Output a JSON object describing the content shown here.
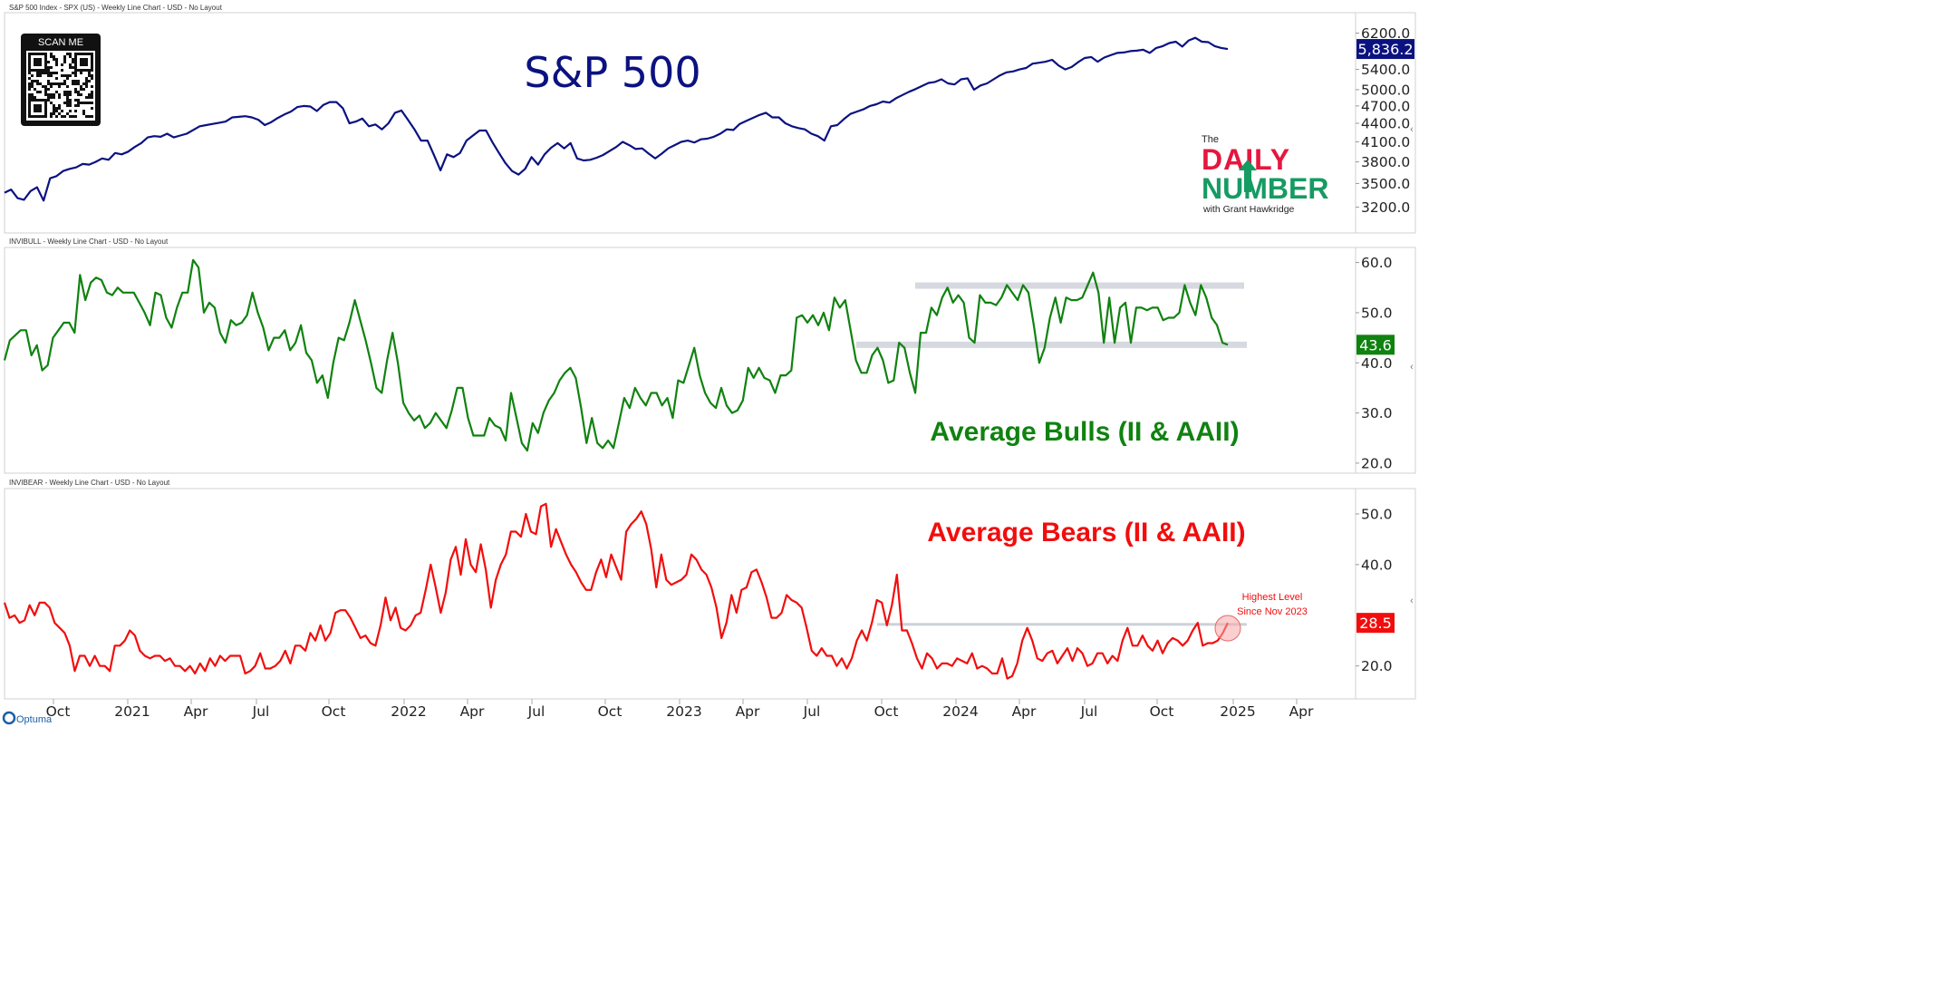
{
  "colors": {
    "spx": "#0b1280",
    "bull": "#108210",
    "bear": "#f20d0d",
    "spx_label_bg": "#0b1280",
    "bull_label_bg": "#108210",
    "bear_label_bg": "#f20d0d",
    "logo_red": "#e5173f",
    "logo_green": "#169b62",
    "band": "#c8ccd4"
  },
  "branding": {
    "qr_label": "SCAN ME",
    "logo_the": "The",
    "logo_daily": "DAILY",
    "logo_number": "NUMBER",
    "logo_sub": "with Grant Hawkridge",
    "optuma": "Optuma"
  },
  "chart_data": [
    {
      "type": "line",
      "panel_caption": "S&P 500 Index - SPX (US) - Weekly Line Chart - USD - No Layout",
      "title": "S&P 500",
      "ylim": [
        2900,
        6700
      ],
      "yticks": [
        "3200.0",
        "3500.0",
        "3800.0",
        "4100.0",
        "4400.0",
        "4700.0",
        "5000.0",
        "5400.0",
        "6200.0"
      ],
      "last_label": "5,836.2",
      "grid": false,
      "series": [
        {
          "values": [
            3380,
            3420,
            3310,
            3290,
            3400,
            3450,
            3280,
            3570,
            3600,
            3670,
            3700,
            3720,
            3770,
            3760,
            3800,
            3850,
            3830,
            3930,
            3910,
            3950,
            4020,
            4080,
            4170,
            4190,
            4180,
            4230,
            4170,
            4200,
            4230,
            4290,
            4350,
            4370,
            4390,
            4410,
            4430,
            4500,
            4510,
            4520,
            4500,
            4460,
            4370,
            4420,
            4490,
            4550,
            4600,
            4680,
            4700,
            4690,
            4610,
            4720,
            4770,
            4770,
            4660,
            4400,
            4430,
            4480,
            4350,
            4380,
            4300,
            4400,
            4580,
            4620,
            4460,
            4300,
            4120,
            4120,
            3900,
            3680,
            3910,
            3870,
            3930,
            4120,
            4200,
            4280,
            4280,
            4090,
            3930,
            3780,
            3670,
            3620,
            3700,
            3870,
            3760,
            3910,
            4010,
            4080,
            4000,
            4080,
            3850,
            3820,
            3830,
            3860,
            3900,
            3960,
            4020,
            4100,
            4050,
            3990,
            4000,
            3920,
            3850,
            3920,
            4000,
            4050,
            4100,
            4120,
            4090,
            4140,
            4150,
            4180,
            4230,
            4300,
            4290,
            4390,
            4440,
            4490,
            4540,
            4580,
            4500,
            4500,
            4400,
            4350,
            4320,
            4300,
            4230,
            4190,
            4120,
            4350,
            4370,
            4470,
            4560,
            4600,
            4640,
            4700,
            4730,
            4780,
            4760,
            4840,
            4900,
            4960,
            5010,
            5070,
            5130,
            5150,
            5200,
            5120,
            5100,
            5200,
            5220,
            5000,
            5080,
            5120,
            5200,
            5280,
            5340,
            5360,
            5400,
            5430,
            5520,
            5540,
            5560,
            5600,
            5480,
            5400,
            5450,
            5550,
            5640,
            5660,
            5560,
            5650,
            5700,
            5750,
            5760,
            5790,
            5800,
            5820,
            5750,
            5860,
            5900,
            5970,
            6000,
            5890,
            6030,
            6090,
            6000,
            5990,
            5900,
            5860,
            5836
          ]
        }
      ]
    },
    {
      "type": "line",
      "panel_caption": "INVIBULL - Weekly Line Chart - USD - No Layout",
      "title": "Average Bulls (II & AAII)",
      "ylim": [
        18,
        63
      ],
      "yticks": [
        "20.0",
        "30.0",
        "40.0",
        "50.0",
        "60.0"
      ],
      "last_label": "43.6",
      "grid": false,
      "bands": [
        55.4,
        43.6
      ],
      "series": [
        {
          "values": [
            40.5,
            44.5,
            45.5,
            46.5,
            46.5,
            41.5,
            43.5,
            38.5,
            39.5,
            45,
            46.5,
            48,
            48,
            46,
            57.5,
            52.5,
            56,
            57,
            56.5,
            54,
            53.5,
            55,
            54,
            54,
            54,
            52,
            50,
            47.5,
            54,
            53.5,
            49,
            47,
            51,
            54,
            54,
            60.5,
            59,
            50,
            52,
            51,
            46,
            44,
            48.5,
            47.5,
            48,
            49.5,
            54,
            50,
            47,
            42.5,
            45,
            45,
            46.5,
            42.5,
            44,
            47.5,
            42,
            40.5,
            36,
            37.5,
            33,
            40,
            45,
            44.5,
            48,
            52.5,
            48.5,
            44.5,
            40,
            35,
            34,
            40.5,
            46,
            40,
            32,
            30,
            28.5,
            29.5,
            27,
            28,
            30,
            28.5,
            27,
            30.5,
            35,
            35,
            29,
            25.5,
            25.5,
            25.5,
            29,
            27.5,
            27,
            24.5,
            34,
            29,
            24,
            22.5,
            28,
            26,
            30,
            32.5,
            34,
            36.5,
            38,
            39,
            37,
            31,
            24,
            29,
            24,
            23,
            24.5,
            23,
            28,
            33,
            31,
            35,
            33,
            31.5,
            34,
            34,
            31.5,
            33,
            29,
            36.5,
            36,
            39.5,
            43,
            37.5,
            34,
            32,
            31,
            35,
            31.5,
            30,
            30.5,
            32.5,
            39,
            37,
            39,
            37,
            36.5,
            34,
            37.5,
            37.5,
            38.5,
            49,
            49.5,
            48,
            49.5,
            47.5,
            50,
            46.5,
            53,
            51,
            52.5,
            46.5,
            40.5,
            38,
            38,
            41.5,
            43,
            40.5,
            36,
            36.5,
            44,
            43,
            38,
            34,
            46,
            46,
            51,
            49.5,
            53,
            55,
            52,
            53.5,
            52,
            45,
            44,
            53.5,
            52,
            52,
            51.5,
            53,
            55.5,
            54,
            52.5,
            55.5,
            54,
            47.5,
            40,
            43,
            49,
            53,
            48,
            53,
            52.5,
            52.5,
            53,
            55.5,
            58,
            54,
            44,
            53,
            44,
            51,
            52,
            44,
            51,
            51,
            50.5,
            51,
            51,
            48.5,
            49,
            49,
            50,
            55.5,
            52,
            49.5,
            55.5,
            53,
            49,
            47.5,
            44,
            43.6
          ]
        }
      ]
    },
    {
      "type": "line",
      "panel_caption": "INVIBEAR - Weekly Line Chart - USD - No Layout",
      "title": "Average Bears (II & AAII)",
      "ylim": [
        13.5,
        55
      ],
      "yticks": [
        "20.0",
        "40.0",
        "50.0"
      ],
      "last_label": "28.5",
      "grid": false,
      "bands": [
        28.2
      ],
      "annotation": [
        "Highest Level",
        "Since Nov 2023"
      ],
      "series": [
        {
          "values": [
            32.5,
            29.5,
            30,
            28.5,
            29,
            32,
            30,
            32.5,
            32.5,
            31.5,
            28.5,
            27.5,
            26.5,
            24,
            19,
            22,
            22,
            20,
            22,
            20,
            20,
            19,
            24,
            24,
            25,
            27,
            26,
            23,
            22,
            21.5,
            22,
            22,
            21,
            21.5,
            20,
            20,
            19,
            20,
            18.5,
            20.5,
            19,
            21.5,
            20,
            22,
            21,
            22,
            22,
            22,
            18.5,
            19,
            20,
            22.5,
            19.5,
            19.5,
            20,
            21,
            23,
            20.5,
            24,
            24,
            23,
            26.5,
            25,
            28,
            25,
            26.5,
            30.5,
            31,
            31,
            29.5,
            27.5,
            25.5,
            26,
            24.5,
            24,
            28,
            33.5,
            29,
            31.5,
            27.5,
            27,
            28,
            30,
            30.5,
            35,
            40,
            35.5,
            30.5,
            34.5,
            41,
            43.5,
            38,
            45,
            40,
            38.5,
            44,
            39,
            31.5,
            37,
            40,
            42,
            46.5,
            46.5,
            45.5,
            50,
            46.5,
            46,
            51.5,
            52,
            43.5,
            47,
            44.5,
            42,
            40,
            38.5,
            36.5,
            35,
            35,
            38.5,
            41,
            37.5,
            42,
            39.5,
            37,
            46.5,
            48,
            49,
            50.5,
            48,
            43,
            35.5,
            42,
            37,
            36,
            36.5,
            37,
            38,
            42,
            41,
            39,
            38,
            35.5,
            31.5,
            25.5,
            28.5,
            34,
            30.5,
            35,
            35.5,
            38.5,
            39,
            36.5,
            33.5,
            29.5,
            29.5,
            30.5,
            34,
            33,
            32.5,
            31.5,
            27.5,
            23,
            22,
            23.5,
            22,
            22,
            20,
            21.5,
            19.5,
            21.5,
            25,
            27,
            25,
            28.5,
            33,
            32.5,
            28,
            32,
            38,
            27,
            27,
            24.5,
            21.5,
            19.5,
            22.5,
            21.5,
            19.5,
            20.5,
            20.5,
            20,
            21.5,
            21,
            20.5,
            22.5,
            19.5,
            20,
            19.5,
            18.5,
            18.5,
            21.5,
            17.5,
            18,
            20.5,
            25,
            27.5,
            25,
            21.5,
            21,
            22.5,
            23,
            20.5,
            22,
            23.5,
            21,
            23.5,
            22.5,
            20,
            20.5,
            22.5,
            22.5,
            20.5,
            22,
            21,
            25,
            27.5,
            24,
            24,
            26,
            24,
            23,
            25,
            22.5,
            24.5,
            25.5,
            25,
            24,
            25,
            27,
            28.5,
            24,
            24.5,
            24.5,
            25,
            26.5,
            28.5
          ]
        }
      ]
    }
  ],
  "x_axis": {
    "labels": [
      "Oct",
      "2021",
      "Apr",
      "Jul",
      "Oct",
      "2022",
      "Apr",
      "Jul",
      "Oct",
      "2023",
      "Apr",
      "Jul",
      "Oct",
      "2024",
      "Apr",
      "Jul",
      "Oct",
      "2025",
      "Apr"
    ]
  }
}
